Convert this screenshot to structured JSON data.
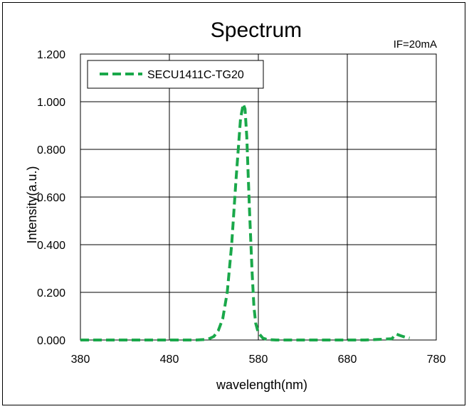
{
  "chart_data": {
    "type": "line",
    "title": "Spectrum",
    "annotation": "IF=20mA",
    "xlabel": "wavelength(nm)",
    "ylabel": "Intensity(a.u.)",
    "xlim": [
      380,
      780
    ],
    "ylim": [
      0,
      1.2
    ],
    "x_ticks": [
      "380",
      "480",
      "580",
      "680",
      "780"
    ],
    "y_ticks": [
      "0.000",
      "0.200",
      "0.400",
      "0.600",
      "0.800",
      "1.000",
      "1.200"
    ],
    "grid": true,
    "legend_position": "top-left",
    "series": [
      {
        "name": "SECU1411C-TG20",
        "color": "#1aa84a",
        "line_style": "dashed",
        "x": [
          380,
          400,
          420,
          440,
          460,
          480,
          500,
          510,
          520,
          525,
          530,
          535,
          540,
          545,
          550,
          555,
          560,
          563,
          565,
          567,
          570,
          573,
          575,
          577,
          580,
          585,
          590,
          600,
          620,
          650,
          700,
          730,
          735,
          740,
          745,
          750
        ],
        "y": [
          0,
          0,
          0,
          0,
          0,
          0,
          0,
          0,
          0.002,
          0.006,
          0.015,
          0.04,
          0.09,
          0.2,
          0.4,
          0.68,
          0.93,
          0.99,
          0.97,
          0.85,
          0.55,
          0.28,
          0.14,
          0.07,
          0.03,
          0.008,
          0.002,
          0,
          0,
          0,
          0,
          0.005,
          0.025,
          0.018,
          0.012,
          0.008
        ]
      }
    ]
  }
}
